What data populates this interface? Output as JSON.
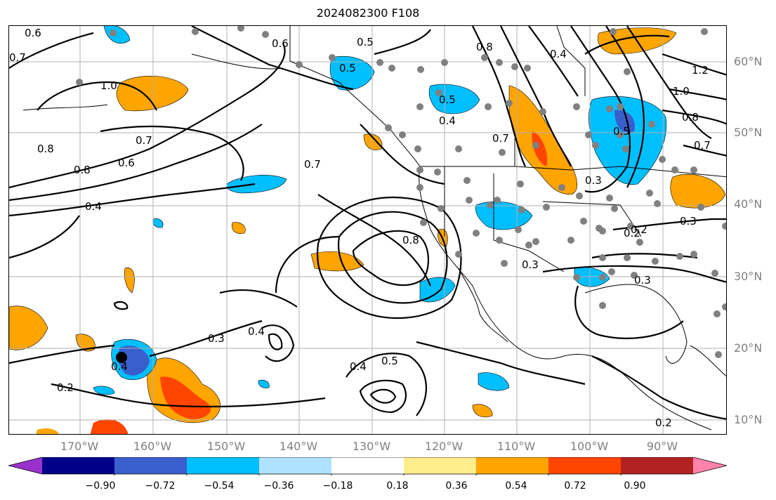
{
  "title": "2024082300 F108",
  "lat_labels": [
    "60°N",
    "50°N",
    "40°N",
    "30°N",
    "20°N",
    "10°N"
  ],
  "lon_labels": [
    "170°W",
    "160°W",
    "150°W",
    "140°W",
    "130°W",
    "120°W",
    "110°W",
    "100°W",
    "90°W"
  ],
  "colorbar": {
    "colors": [
      "#9932cc",
      "#00008b",
      "#3a5fcd",
      "#00bfff",
      "#b0e2ff",
      "#ffffff",
      "#ffec8b",
      "#ffa500",
      "#ff4500",
      "#b22222",
      "#ff82ab"
    ],
    "tick_labels": [
      "−0.90",
      "−0.72",
      "−0.54",
      "−0.36",
      "−0.18",
      "0.18",
      "0.36",
      "0.54",
      "0.72",
      "0.90"
    ]
  },
  "contour_labels": [
    "0.6",
    "0.5",
    "0.5",
    "0.6",
    "0.7",
    "1.0",
    "0.8",
    "0.7",
    "0.8",
    "0.6",
    "0.4",
    "0.5",
    "0.4",
    "0.7",
    "0.7",
    "0.8",
    "0.3",
    "0.3",
    "0.4",
    "0.2",
    "0.4",
    "0.5",
    "0.2",
    "0.8",
    "1.0",
    "1.2",
    "0.8",
    "0.7",
    "0.5",
    "0.4",
    "0.3",
    "0.2",
    "0.3",
    "0.3",
    "0.2",
    "0.4"
  ]
}
